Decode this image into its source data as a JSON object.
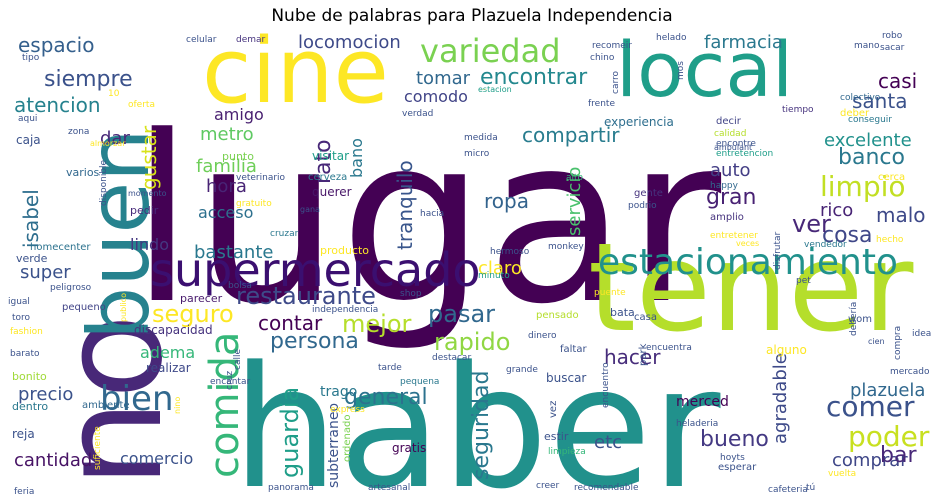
{
  "title": "Nube de palabras para Plazuela Independencia",
  "palette": [
    "#440154",
    "#414487",
    "#2a788e",
    "#22a884",
    "#7ad151",
    "#bddf26",
    "#fde725"
  ],
  "words": [
    {
      "text": "lugar",
      "color": "#440154"
    },
    {
      "text": "haber",
      "color": "#21918c"
    },
    {
      "text": "tener",
      "color": "#b5de2b"
    },
    {
      "text": "no",
      "color": "#482878"
    },
    {
      "text": "buen",
      "color": "#26828e"
    },
    {
      "text": "cine",
      "color": "#fde725"
    },
    {
      "text": "local",
      "color": "#1f9e89"
    },
    {
      "text": "supermercado",
      "color": "#3b0f70"
    },
    {
      "text": "estacionamiento",
      "color": "#21918c"
    },
    {
      "text": "comida",
      "color": "#35b779"
    },
    {
      "text": "variedad",
      "color": "#7ad151"
    },
    {
      "text": "bien",
      "color": "#31688e"
    },
    {
      "text": "restaurante",
      "color": "#3e4a89"
    },
    {
      "text": "seguro",
      "color": "#fde725"
    },
    {
      "text": "mejor",
      "color": "#b5de2b"
    },
    {
      "text": "pasar",
      "color": "#31688e"
    },
    {
      "text": "rapido",
      "color": "#90d743"
    },
    {
      "text": "persona",
      "color": "#31688e"
    },
    {
      "text": "contar",
      "color": "#440154"
    },
    {
      "text": "limpio",
      "color": "#c2df23"
    },
    {
      "text": "comer",
      "color": "#3b528b"
    },
    {
      "text": "poder",
      "color": "#c8e020"
    },
    {
      "text": "guardia",
      "color": "#1f9e89"
    },
    {
      "text": "seguridad",
      "color": "#2a788e"
    },
    {
      "text": "general",
      "color": "#2c728e"
    },
    {
      "text": "bueno",
      "color": "#443983"
    },
    {
      "text": "hacer",
      "color": "#472d7b"
    },
    {
      "text": "compartir",
      "color": "#287c8e"
    },
    {
      "text": "encontrar",
      "color": "#23888e"
    },
    {
      "text": "siempre",
      "color": "#3b528b"
    },
    {
      "text": "espacio",
      "color": "#35608d"
    },
    {
      "text": "atencion",
      "color": "#26828e"
    },
    {
      "text": "banco",
      "color": "#2a788e"
    },
    {
      "text": "excelente",
      "color": "#21918c"
    },
    {
      "text": "familia",
      "color": "#6ece58"
    },
    {
      "text": "metro",
      "color": "#5ec962"
    },
    {
      "text": "hora",
      "color": "#482475"
    },
    {
      "text": "acceso",
      "color": "#2d708e"
    },
    {
      "text": "gran",
      "color": "#482173"
    },
    {
      "text": "auto",
      "color": "#433e85"
    },
    {
      "text": "cosa",
      "color": "#3f4788"
    },
    {
      "text": "ropa",
      "color": "#33638d"
    },
    {
      "text": "ver",
      "color": "#482878"
    },
    {
      "text": "rico",
      "color": "#482475"
    },
    {
      "text": "malo",
      "color": "#3e4989"
    },
    {
      "text": "santa",
      "color": "#3b528b"
    },
    {
      "text": "casi",
      "color": "#440154"
    },
    {
      "text": "farmacia",
      "color": "#2a788e"
    },
    {
      "text": "tomar",
      "color": "#31688e"
    },
    {
      "text": "locomocion",
      "color": "#3e4a89"
    },
    {
      "text": "comodo",
      "color": "#414487"
    },
    {
      "text": "dar",
      "color": "#482878"
    },
    {
      "text": "amigo",
      "color": "#481f70"
    },
    {
      "text": "gustar",
      "color": "#d8e219"
    },
    {
      "text": "isabel",
      "color": "#2e6e8e"
    },
    {
      "text": "super",
      "color": "#3b528b"
    },
    {
      "text": "lindo",
      "color": "#453781"
    },
    {
      "text": "bastante",
      "color": "#29788e"
    },
    {
      "text": "claro",
      "color": "#fde725"
    },
    {
      "text": "tranquilo",
      "color": "#39568c"
    },
    {
      "text": "bano",
      "color": "#2a788e"
    },
    {
      "text": "rato",
      "color": "#482878"
    },
    {
      "text": "servicio",
      "color": "#4ac16d"
    },
    {
      "text": "agradable",
      "color": "#3e4a89"
    },
    {
      "text": "plazuela",
      "color": "#31688e"
    },
    {
      "text": "comprar",
      "color": "#3f4788"
    },
    {
      "text": "bar",
      "color": "#482878"
    },
    {
      "text": "precio",
      "color": "#3b528b"
    },
    {
      "text": "adema",
      "color": "#35b779"
    },
    {
      "text": "cantidad",
      "color": "#471365"
    },
    {
      "text": "comercio",
      "color": "#3b528b"
    },
    {
      "text": "etc",
      "color": "#3b528b"
    },
    {
      "text": "trago",
      "color": "#2a788e"
    },
    {
      "text": "subterraneo",
      "color": "#3b528b"
    },
    {
      "text": "merced",
      "color": "#440154"
    },
    {
      "text": "buscar",
      "color": "#3b528b"
    },
    {
      "text": "alguno",
      "color": "#fde725"
    },
    {
      "text": "querer",
      "color": "#481668"
    },
    {
      "text": "visitar",
      "color": "#1f9e89"
    },
    {
      "text": "experiencia",
      "color": "#2e6e8e"
    },
    {
      "text": "discapacidad",
      "color": "#46337e"
    },
    {
      "text": "parecer",
      "color": "#481a6c"
    },
    {
      "text": "pequeno",
      "color": "#414487"
    },
    {
      "text": "realizar",
      "color": "#3e4989"
    },
    {
      "text": "bonito",
      "color": "#a0da39"
    },
    {
      "text": "dentro",
      "color": "#2a788e"
    },
    {
      "text": "ambiente",
      "color": "#31688e"
    },
    {
      "text": "reja",
      "color": "#3b528b"
    },
    {
      "text": "cerveza",
      "color": "#2a788e"
    },
    {
      "text": "varios",
      "color": "#31688e"
    },
    {
      "text": "pedir",
      "color": "#472a7a"
    },
    {
      "text": "homecenter",
      "color": "#2c728e"
    },
    {
      "text": "verde",
      "color": "#3b528b"
    },
    {
      "text": "caja",
      "color": "#3b528b"
    },
    {
      "text": "punto",
      "color": "#7ad151"
    },
    {
      "text": "celular",
      "color": "#3b528b"
    },
    {
      "text": "demar",
      "color": "#46337e"
    },
    {
      "text": "oferta",
      "color": "#fde725"
    },
    {
      "text": "calidad",
      "color": "#b5de2b"
    },
    {
      "text": "decir",
      "color": "#414487"
    },
    {
      "text": "encontre",
      "color": "#3b528b"
    },
    {
      "text": "entretencion",
      "color": "#1f9e89"
    },
    {
      "text": "colectivo",
      "color": "#31688e"
    },
    {
      "text": "deber",
      "color": "#fde725"
    },
    {
      "text": "conseguir",
      "color": "#2a788e"
    },
    {
      "text": "tiempo",
      "color": "#46337e"
    },
    {
      "text": "frente",
      "color": "#3b528b"
    },
    {
      "text": "verdad",
      "color": "#3b528b"
    },
    {
      "text": "medida",
      "color": "#3b528b"
    },
    {
      "text": "micro",
      "color": "#3b528b"
    },
    {
      "text": "alto",
      "color": "#35b779"
    },
    {
      "text": "gente",
      "color": "#46337e"
    },
    {
      "text": "podrio",
      "color": "#3b528b"
    },
    {
      "text": "happy",
      "color": "#31688e"
    },
    {
      "text": "amplio",
      "color": "#46337e"
    },
    {
      "text": "cerca",
      "color": "#fde725"
    },
    {
      "text": "disfrutar",
      "color": "#3b528b"
    },
    {
      "text": "entretener",
      "color": "#fde725"
    },
    {
      "text": "hecho",
      "color": "#fde725"
    },
    {
      "text": "vendedor",
      "color": "#2a788e"
    },
    {
      "text": "veces",
      "color": "#fde725"
    },
    {
      "text": "hermoso",
      "color": "#3b528b"
    },
    {
      "text": "monkey",
      "color": "#3b528b"
    },
    {
      "text": "producto",
      "color": "#fde725"
    },
    {
      "text": "minuto",
      "color": "#1f9e89"
    },
    {
      "text": "cruzar",
      "color": "#2a788e"
    },
    {
      "text": "bolsa",
      "color": "#3b528b"
    },
    {
      "text": "independencia",
      "color": "#3b528b"
    },
    {
      "text": "shop",
      "color": "#3b528b"
    },
    {
      "text": "pet",
      "color": "#3b528b"
    },
    {
      "text": "puente",
      "color": "#fde725"
    },
    {
      "text": "pensado",
      "color": "#b5de2b"
    },
    {
      "text": "bata",
      "color": "#3b528b"
    },
    {
      "text": "casa",
      "color": "#3b528b"
    },
    {
      "text": "dinero",
      "color": "#3b528b"
    },
    {
      "text": "encuentra",
      "color": "#3b528b"
    },
    {
      "text": "faltar",
      "color": "#3b528b"
    },
    {
      "text": "destacar",
      "color": "#3b528b"
    },
    {
      "text": "tarde",
      "color": "#3b528b"
    },
    {
      "text": "grande",
      "color": "#3b528b"
    },
    {
      "text": "pequena",
      "color": "#2a788e"
    },
    {
      "text": "express",
      "color": "#fde725"
    },
    {
      "text": "ordenado",
      "color": "#7ad151"
    },
    {
      "text": "gratis",
      "color": "#440154"
    },
    {
      "text": "estir",
      "color": "#3b528b"
    },
    {
      "text": "vez",
      "color": "#3b528b"
    },
    {
      "text": "limpieza",
      "color": "#35b779"
    },
    {
      "text": "panorama",
      "color": "#3b528b"
    },
    {
      "text": "artesanal",
      "color": "#3b528b"
    },
    {
      "text": "creer",
      "color": "#3b528b"
    },
    {
      "text": "recomendable",
      "color": "#3b528b"
    },
    {
      "text": "cafeteria",
      "color": "#3b528b"
    },
    {
      "text": "vuelta",
      "color": "#fde725"
    },
    {
      "text": "esperar",
      "color": "#3b528b"
    },
    {
      "text": "hoyts",
      "color": "#3b528b"
    },
    {
      "text": "heladeria",
      "color": "#3b528b"
    },
    {
      "text": "encuentro",
      "color": "#3b528b"
    },
    {
      "text": "park",
      "color": "#3b528b"
    },
    {
      "text": "mercado",
      "color": "#3b528b"
    },
    {
      "text": "idea",
      "color": "#3b528b"
    },
    {
      "text": "compra",
      "color": "#3b528b"
    },
    {
      "text": "debería",
      "color": "#3b528b"
    },
    {
      "text": "wom",
      "color": "#3b528b"
    },
    {
      "text": "feria",
      "color": "#3b528b"
    },
    {
      "text": "suficiente",
      "color": "#fde725"
    },
    {
      "text": "nino",
      "color": "#fde725"
    },
    {
      "text": "cruz",
      "color": "#3b528b"
    },
    {
      "text": "calle",
      "color": "#3b528b"
    },
    {
      "text": "encantar",
      "color": "#3b528b"
    },
    {
      "text": "barato",
      "color": "#3b528b"
    },
    {
      "text": "fashion",
      "color": "#fde725"
    },
    {
      "text": "toro",
      "color": "#3b528b"
    },
    {
      "text": "igual",
      "color": "#3b528b"
    },
    {
      "text": "peligroso",
      "color": "#3b528b"
    },
    {
      "text": "publico",
      "color": "#fde725"
    },
    {
      "text": "gratuito",
      "color": "#fde725"
    },
    {
      "text": "veterinario",
      "color": "#3b528b"
    },
    {
      "text": "gana",
      "color": "#3b528b"
    },
    {
      "text": "momento",
      "color": "#3b528b"
    },
    {
      "text": "disponible",
      "color": "#3b528b"
    },
    {
      "text": "almorzar",
      "color": "#fde725"
    },
    {
      "text": "zona",
      "color": "#3b528b"
    },
    {
      "text": "aqui",
      "color": "#3b528b"
    },
    {
      "text": "tipo",
      "color": "#3b528b"
    },
    {
      "text": "10",
      "color": "#fde725"
    },
    {
      "text": "recomeir",
      "color": "#3b528b"
    },
    {
      "text": "chino",
      "color": "#3b528b"
    },
    {
      "text": "carro",
      "color": "#3b528b"
    },
    {
      "text": "mos",
      "color": "#3b528b"
    },
    {
      "text": "helado",
      "color": "#3b528b"
    },
    {
      "text": "estacion",
      "color": "#1f9e89"
    },
    {
      "text": "mano",
      "color": "#3b528b"
    },
    {
      "text": "sacar",
      "color": "#3b528b"
    },
    {
      "text": "robo",
      "color": "#3b528b"
    },
    {
      "text": "ambulant",
      "color": "#3b528b"
    },
    {
      "text": "cien",
      "color": "#3b528b"
    },
    {
      "text": "tú",
      "color": "#3b528b"
    },
    {
      "text": "hacia",
      "color": "#3b528b"
    },
    {
      "text": "encontrar",
      "color": "#fde725"
    }
  ]
}
